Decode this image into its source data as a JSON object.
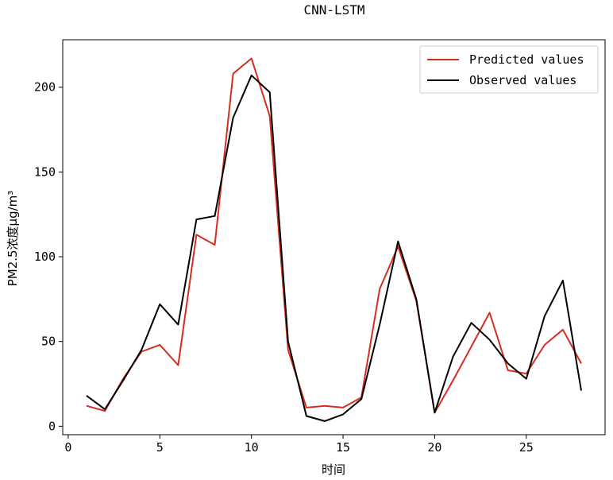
{
  "chart_data": {
    "type": "line",
    "title": "CNN-LSTM",
    "xlabel": "时间",
    "ylabel": "PM2.5浓度μg/m³",
    "xlim": [
      -0.3,
      29.3
    ],
    "ylim": [
      -5,
      228
    ],
    "xticks": [
      0,
      5,
      10,
      15,
      20,
      25
    ],
    "yticks": [
      0,
      50,
      100,
      150,
      200
    ],
    "grid": false,
    "legend_position": "upper right",
    "x": [
      1,
      2,
      3,
      4,
      5,
      6,
      7,
      8,
      9,
      10,
      11,
      12,
      13,
      14,
      15,
      16,
      17,
      18,
      19,
      20,
      21,
      22,
      23,
      24,
      25,
      26,
      27,
      28
    ],
    "series": [
      {
        "name": "Predicted values",
        "color": "#d62d20",
        "values": [
          12,
          9,
          28,
          44,
          48,
          36,
          113,
          107,
          208,
          217,
          183,
          45,
          11,
          12,
          11,
          17,
          81,
          106,
          74,
          8,
          27,
          47,
          67,
          33,
          31,
          48,
          57,
          37
        ]
      },
      {
        "name": "Observed values",
        "color": "#000000",
        "values": [
          18,
          10,
          27,
          45,
          72,
          60,
          122,
          124,
          182,
          207,
          197,
          50,
          6,
          3,
          7,
          16,
          60,
          109,
          75,
          8,
          41,
          61,
          51,
          37,
          28,
          65,
          86,
          21
        ]
      }
    ]
  }
}
